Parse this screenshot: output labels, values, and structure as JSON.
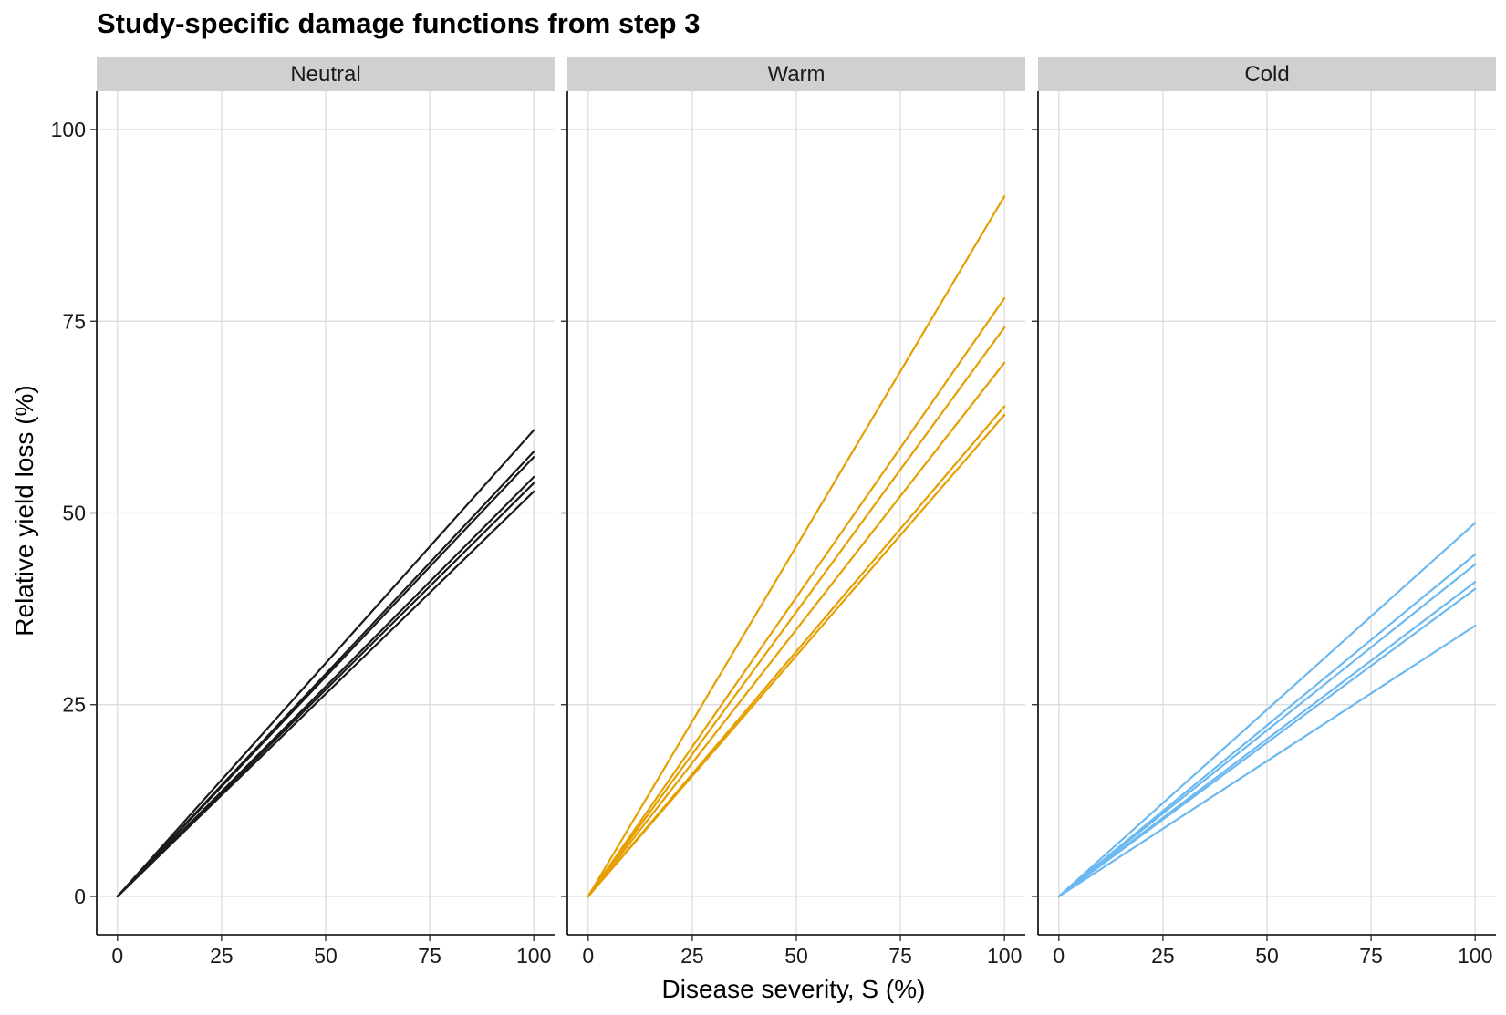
{
  "chart_data": {
    "type": "line",
    "title": "Study-specific damage functions from step 3",
    "xlabel": "Disease severity, S (%)",
    "ylabel": "Relative yield loss (%)",
    "xlim": [
      -5,
      105
    ],
    "ylim": [
      -5,
      105
    ],
    "x_ticks": [
      0,
      25,
      50,
      75,
      100
    ],
    "y_ticks": [
      0,
      25,
      50,
      75,
      100
    ],
    "grid": true,
    "panels": [
      {
        "name": "Neutral",
        "color": "#1a1a1a",
        "lines": [
          {
            "x": [
              0,
              100
            ],
            "y": [
              0,
              60.8
            ]
          },
          {
            "x": [
              0,
              100
            ],
            "y": [
              0,
              58.0
            ]
          },
          {
            "x": [
              0,
              100
            ],
            "y": [
              0,
              57.3
            ]
          },
          {
            "x": [
              0,
              100
            ],
            "y": [
              0,
              54.7
            ]
          },
          {
            "x": [
              0,
              100
            ],
            "y": [
              0,
              53.9
            ]
          },
          {
            "x": [
              0,
              100
            ],
            "y": [
              0,
              52.8
            ]
          }
        ]
      },
      {
        "name": "Warm",
        "color": "#E69F00",
        "lines": [
          {
            "x": [
              0,
              100
            ],
            "y": [
              0,
              91.3
            ]
          },
          {
            "x": [
              0,
              100
            ],
            "y": [
              0,
              78.0
            ]
          },
          {
            "x": [
              0,
              100
            ],
            "y": [
              0,
              74.2
            ]
          },
          {
            "x": [
              0,
              100
            ],
            "y": [
              0,
              69.6
            ]
          },
          {
            "x": [
              0,
              100
            ],
            "y": [
              0,
              63.9
            ]
          },
          {
            "x": [
              0,
              100
            ],
            "y": [
              0,
              62.8
            ]
          }
        ]
      },
      {
        "name": "Cold",
        "color": "#6CB8F0",
        "lines": [
          {
            "x": [
              0,
              100
            ],
            "y": [
              0,
              48.7
            ]
          },
          {
            "x": [
              0,
              100
            ],
            "y": [
              0,
              44.6
            ]
          },
          {
            "x": [
              0,
              100
            ],
            "y": [
              0,
              43.3
            ]
          },
          {
            "x": [
              0,
              100
            ],
            "y": [
              0,
              41.0
            ]
          },
          {
            "x": [
              0,
              100
            ],
            "y": [
              0,
              40.1
            ]
          },
          {
            "x": [
              0,
              100
            ],
            "y": [
              0,
              35.3
            ]
          }
        ]
      }
    ]
  }
}
